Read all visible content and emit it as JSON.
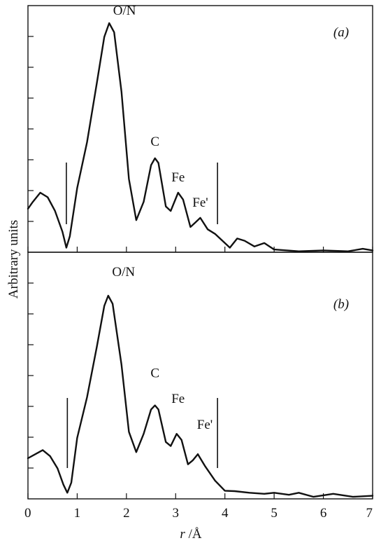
{
  "chart_data": {
    "type": "line",
    "xlabel": "r /Å",
    "ylabel": "Arbitrary units",
    "xlim": [
      0,
      7
    ],
    "x_ticks": [
      "0",
      "1",
      "2",
      "3",
      "4",
      "5",
      "6",
      "7"
    ],
    "grid": false,
    "legend": "none",
    "panels": [
      {
        "label": "(a)",
        "ylim": [
          0,
          1.0
        ],
        "points": [
          [
            0.0,
            0.19
          ],
          [
            0.1,
            0.22
          ],
          [
            0.25,
            0.26
          ],
          [
            0.4,
            0.24
          ],
          [
            0.55,
            0.18
          ],
          [
            0.7,
            0.09
          ],
          [
            0.78,
            0.02
          ],
          [
            0.85,
            0.07
          ],
          [
            1.0,
            0.28
          ],
          [
            1.2,
            0.48
          ],
          [
            1.4,
            0.74
          ],
          [
            1.55,
            0.94
          ],
          [
            1.65,
            1.0
          ],
          [
            1.75,
            0.96
          ],
          [
            1.9,
            0.7
          ],
          [
            2.05,
            0.32
          ],
          [
            2.2,
            0.14
          ],
          [
            2.35,
            0.22
          ],
          [
            2.5,
            0.38
          ],
          [
            2.58,
            0.41
          ],
          [
            2.65,
            0.39
          ],
          [
            2.8,
            0.2
          ],
          [
            2.9,
            0.18
          ],
          [
            3.05,
            0.26
          ],
          [
            3.15,
            0.23
          ],
          [
            3.3,
            0.11
          ],
          [
            3.4,
            0.13
          ],
          [
            3.5,
            0.15
          ],
          [
            3.65,
            0.1
          ],
          [
            3.8,
            0.08
          ],
          [
            4.0,
            0.04
          ],
          [
            4.1,
            0.02
          ],
          [
            4.25,
            0.06
          ],
          [
            4.4,
            0.05
          ],
          [
            4.6,
            0.025
          ],
          [
            4.8,
            0.04
          ],
          [
            5.0,
            0.012
          ],
          [
            5.5,
            0.004
          ],
          [
            6.0,
            0.008
          ],
          [
            6.5,
            0.004
          ],
          [
            6.8,
            0.015
          ],
          [
            7.0,
            0.008
          ]
        ],
        "peaks": [
          {
            "label": "O/N",
            "x": 1.65,
            "y": 1.0
          },
          {
            "label": "C",
            "x": 2.58,
            "y": 0.41
          },
          {
            "label": "Fe",
            "x": 3.05,
            "y": 0.26
          },
          {
            "label": "Fe'",
            "x": 3.5,
            "y": 0.15
          }
        ],
        "window": [
          0.78,
          3.85
        ]
      },
      {
        "label": "(b)",
        "ylim": [
          0,
          1.0
        ],
        "points": [
          [
            0.0,
            0.2
          ],
          [
            0.15,
            0.22
          ],
          [
            0.3,
            0.24
          ],
          [
            0.45,
            0.21
          ],
          [
            0.6,
            0.15
          ],
          [
            0.72,
            0.07
          ],
          [
            0.8,
            0.03
          ],
          [
            0.88,
            0.08
          ],
          [
            1.0,
            0.3
          ],
          [
            1.2,
            0.5
          ],
          [
            1.4,
            0.75
          ],
          [
            1.55,
            0.95
          ],
          [
            1.63,
            1.0
          ],
          [
            1.72,
            0.96
          ],
          [
            1.9,
            0.66
          ],
          [
            2.05,
            0.33
          ],
          [
            2.2,
            0.23
          ],
          [
            2.35,
            0.32
          ],
          [
            2.5,
            0.44
          ],
          [
            2.58,
            0.46
          ],
          [
            2.65,
            0.44
          ],
          [
            2.8,
            0.28
          ],
          [
            2.9,
            0.26
          ],
          [
            3.02,
            0.32
          ],
          [
            3.12,
            0.29
          ],
          [
            3.25,
            0.17
          ],
          [
            3.35,
            0.19
          ],
          [
            3.45,
            0.22
          ],
          [
            3.6,
            0.16
          ],
          [
            3.8,
            0.09
          ],
          [
            4.0,
            0.04
          ],
          [
            4.2,
            0.038
          ],
          [
            4.5,
            0.03
          ],
          [
            4.8,
            0.025
          ],
          [
            5.0,
            0.03
          ],
          [
            5.3,
            0.02
          ],
          [
            5.5,
            0.03
          ],
          [
            5.8,
            0.01
          ],
          [
            6.2,
            0.025
          ],
          [
            6.6,
            0.01
          ],
          [
            7.0,
            0.015
          ]
        ],
        "peaks": [
          {
            "label": "O/N",
            "x": 1.63,
            "y": 1.0
          },
          {
            "label": "C",
            "x": 2.58,
            "y": 0.46
          },
          {
            "label": "Fe",
            "x": 3.02,
            "y": 0.32
          },
          {
            "label": "Fe'",
            "x": 3.45,
            "y": 0.22
          }
        ],
        "window": [
          0.8,
          3.85
        ]
      }
    ]
  }
}
